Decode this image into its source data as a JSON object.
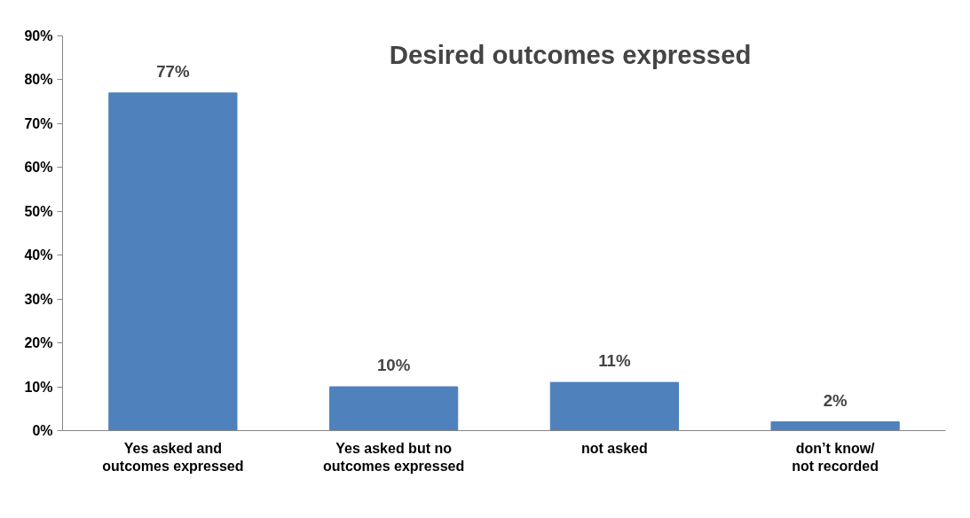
{
  "chart_data": {
    "type": "bar",
    "title": "Desired outcomes expressed",
    "categories": [
      "Yes asked and outcomes expressed",
      "Yes asked but no outcomes expressed",
      "not asked",
      "don’t know/ not recorded"
    ],
    "values": [
      77,
      10,
      11,
      2
    ],
    "color": "#4f81bd",
    "value_labels": [
      "77%",
      "10%",
      "11%",
      "2%"
    ],
    "ylim": [
      0,
      90
    ],
    "yticks": [
      {
        "value": 0,
        "label": "0%"
      },
      {
        "value": 10,
        "label": "10%"
      },
      {
        "value": 20,
        "label": "20%"
      },
      {
        "value": 30,
        "label": "30%"
      },
      {
        "value": 40,
        "label": "40%"
      },
      {
        "value": 50,
        "label": "50%"
      },
      {
        "value": 60,
        "label": "60%"
      },
      {
        "value": 70,
        "label": "70%"
      },
      {
        "value": 80,
        "label": "80%"
      },
      {
        "value": 90,
        "label": "90%"
      }
    ],
    "grid": false
  }
}
